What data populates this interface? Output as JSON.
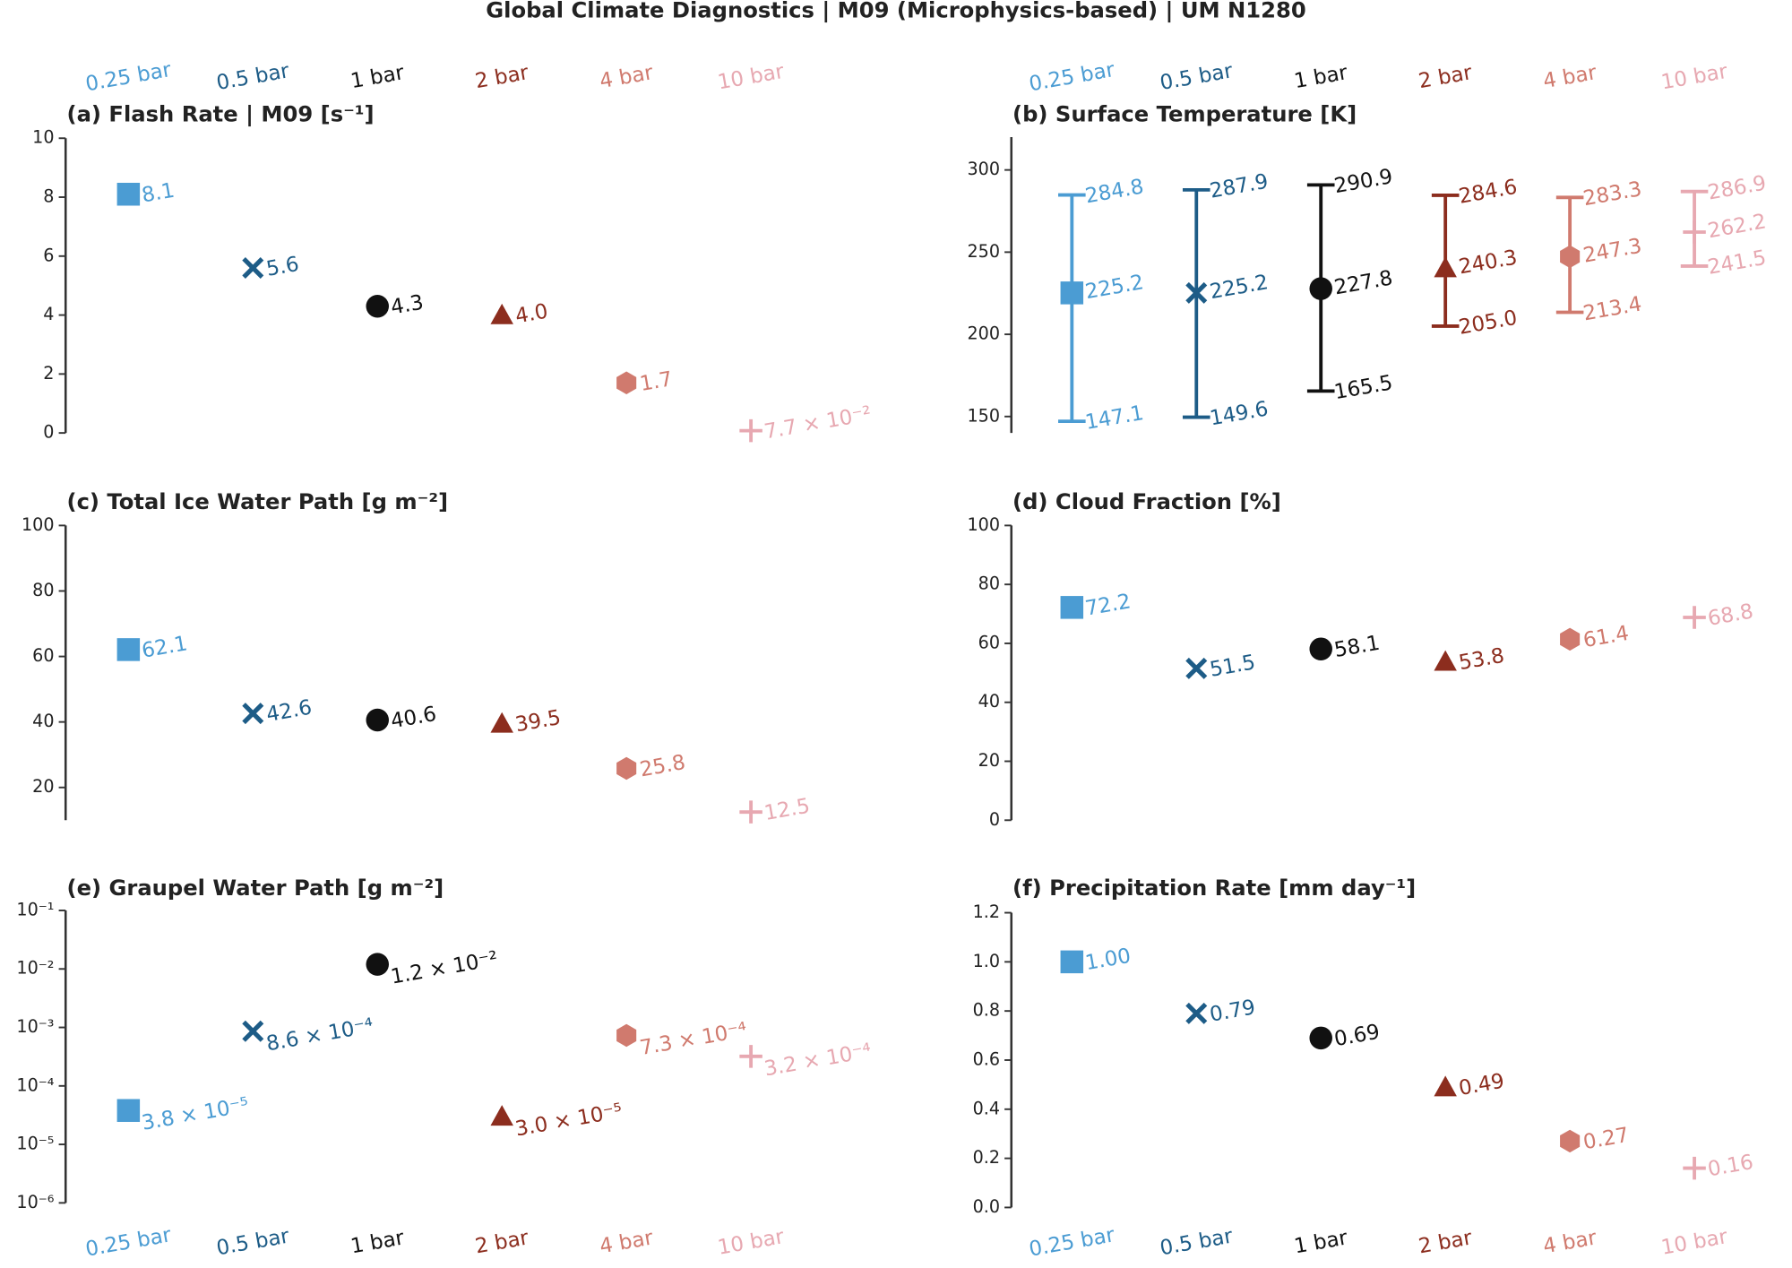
{
  "title": "Global Climate Diagnostics  |  M09 (Microphysics-based)  |  UM N1280",
  "categories": [
    "0.25 bar",
    "0.5 bar",
    "1 bar",
    "2 bar",
    "4 bar",
    "10 bar"
  ],
  "colors": [
    "#4b9cd3",
    "#1d5c87",
    "#111111",
    "#8c2d1e",
    "#d07a6e",
    "#e7a8b1"
  ],
  "markers": [
    "square",
    "x",
    "circle",
    "triangle",
    "hexagon",
    "plus"
  ],
  "chart_data": [
    {
      "type": "scatter",
      "title": "(a) Flash Rate | M09 [s⁻¹]",
      "values": [
        8.1,
        5.6,
        4.3,
        4.0,
        1.7,
        0.077
      ],
      "value_labels": [
        "8.1",
        "5.6",
        "4.3",
        "4.0",
        "1.7",
        "7.7 × 10⁻²"
      ],
      "ylim": [
        0,
        10
      ],
      "yticks": [
        0,
        2,
        4,
        6,
        8,
        10
      ]
    },
    {
      "type": "errorbar",
      "title": "(b) Surface Temperature [K]",
      "values": [
        225.2,
        225.2,
        227.8,
        240.3,
        247.3,
        262.2
      ],
      "min": [
        147.1,
        149.6,
        165.5,
        205.0,
        213.4,
        241.5
      ],
      "min_labels": [
        "147.1",
        "149.6",
        "165.5",
        "205.0",
        "213.4",
        "241.5"
      ],
      "max": [
        284.8,
        287.9,
        290.9,
        284.6,
        283.3,
        286.9
      ],
      "ylim": [
        140,
        320
      ],
      "yticks": [
        150,
        200,
        250,
        300
      ]
    },
    {
      "type": "scatter",
      "title": "(c) Total Ice Water Path [g m⁻²]",
      "values": [
        62.1,
        42.6,
        40.6,
        39.5,
        25.8,
        12.5
      ],
      "ylim": [
        10,
        100
      ],
      "yticks": [
        20,
        40,
        60,
        80,
        100
      ]
    },
    {
      "type": "scatter",
      "title": "(d) Cloud Fraction [%]",
      "values": [
        72.2,
        51.5,
        58.1,
        53.8,
        61.4,
        68.8
      ],
      "ylim": [
        0,
        100
      ],
      "yticks": [
        0,
        20,
        40,
        60,
        80,
        100
      ]
    },
    {
      "type": "scatter",
      "title": "(e) Graupel Water Path [g m⁻²]",
      "ylog": true,
      "values": [
        3.8e-05,
        0.00086,
        0.012,
        3e-05,
        0.00073,
        0.00032
      ],
      "value_labels": [
        "3.8 × 10⁻⁵",
        "8.6 × 10⁻⁴",
        "1.2 × 10⁻²",
        "3.0 × 10⁻⁵",
        "7.3 × 10⁻⁴",
        "3.2 × 10⁻⁴"
      ],
      "ylim": [
        1e-06,
        0.1
      ],
      "yticks": [
        {
          "value": 1e-06,
          "label": "10⁻⁶"
        },
        {
          "value": 1e-05,
          "label": "10⁻⁵"
        },
        {
          "value": 0.0001,
          "label": "10⁻⁴"
        },
        {
          "value": 0.001,
          "label": "10⁻³"
        },
        {
          "value": 0.01,
          "label": "10⁻²"
        },
        {
          "value": 0.1,
          "label": "10⁻¹"
        }
      ]
    },
    {
      "type": "scatter",
      "title": "(f) Precipitation Rate [mm day⁻¹]",
      "values": [
        1.0,
        0.79,
        0.69,
        0.49,
        0.27,
        0.16
      ],
      "value_labels": [
        "1.00",
        "0.79",
        "0.69",
        "0.49",
        "0.27",
        "0.16"
      ],
      "ylim": [
        0,
        1.2
      ],
      "yticks": [
        {
          "value": 0,
          "label": "0.0"
        },
        0.2,
        0.4,
        0.6,
        0.8,
        {
          "value": 1.0,
          "label": "1.0"
        },
        1.2
      ]
    }
  ]
}
